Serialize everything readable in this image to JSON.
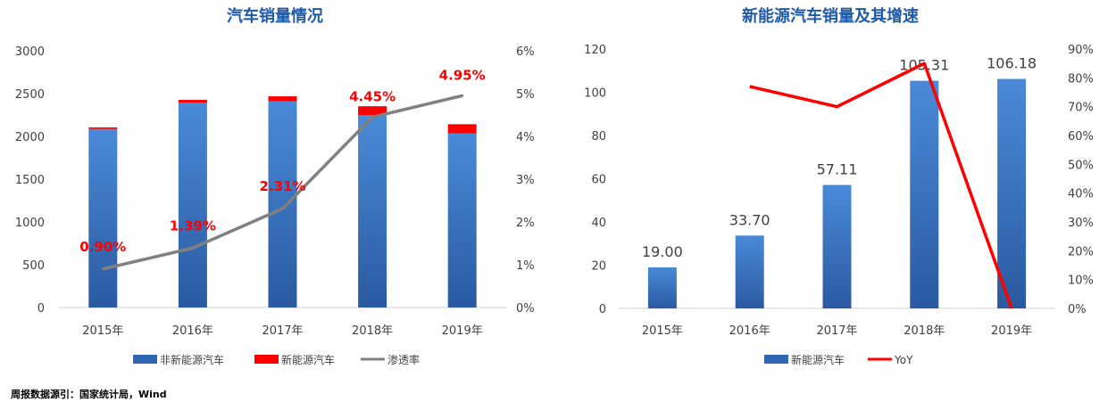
{
  "source_note": "周报数据源引：国家统计局，Wind",
  "chart_data": [
    {
      "type": "bar",
      "title": "汽车销量情况",
      "categories": [
        "2015年",
        "2016年",
        "2017年",
        "2018年",
        "2019年"
      ],
      "stacked": true,
      "series": [
        {
          "name": "非新能源汽车",
          "type": "bar",
          "axis": "left",
          "color": "#3a7bd5",
          "values": [
            2086,
            2393,
            2411,
            2247,
            2036
          ]
        },
        {
          "name": "新能源汽车",
          "type": "bar",
          "axis": "left",
          "color": "#ff0000",
          "values": [
            19.0,
            33.7,
            57.11,
            105.31,
            106.18
          ]
        },
        {
          "name": "渗透率",
          "type": "line",
          "axis": "right",
          "color": "#808080",
          "values": [
            0.9,
            1.39,
            2.31,
            4.45,
            4.95
          ]
        }
      ],
      "data_labels": [
        "0.90%",
        "1.39%",
        "2.31%",
        "4.45%",
        "4.95%"
      ],
      "y_left": {
        "min": 0,
        "max": 3000,
        "ticks": [
          "0",
          "500",
          "1000",
          "1500",
          "2000",
          "2500",
          "3000"
        ]
      },
      "y_right": {
        "min": 0,
        "max": 6,
        "ticks": [
          "0%",
          "1%",
          "2%",
          "3%",
          "4%",
          "5%",
          "6%"
        ]
      },
      "grid": false,
      "legend_position": "bottom"
    },
    {
      "type": "bar",
      "title": "新能源汽车销量及其增速",
      "categories": [
        "2015年",
        "2016年",
        "2017年",
        "2018年",
        "2019年"
      ],
      "series": [
        {
          "name": "新能源汽车",
          "type": "bar",
          "axis": "left",
          "color": "#3a7bd5",
          "values": [
            19.0,
            33.7,
            57.11,
            105.31,
            106.18
          ]
        },
        {
          "name": "YoY",
          "type": "line",
          "axis": "right",
          "color": "#ff0000",
          "values": [
            null,
            77,
            70,
            85,
            0
          ]
        }
      ],
      "data_labels": [
        "19.00",
        "33.70",
        "57.11",
        "105.31",
        "106.18"
      ],
      "y_left": {
        "min": 0,
        "max": 120,
        "ticks": [
          "0",
          "20",
          "40",
          "60",
          "80",
          "100",
          "120"
        ]
      },
      "y_right": {
        "min": 0,
        "max": 90,
        "ticks": [
          "0%",
          "10%",
          "20%",
          "30%",
          "40%",
          "50%",
          "60%",
          "70%",
          "80%",
          "90%"
        ]
      },
      "grid": false,
      "legend_position": "bottom"
    }
  ]
}
